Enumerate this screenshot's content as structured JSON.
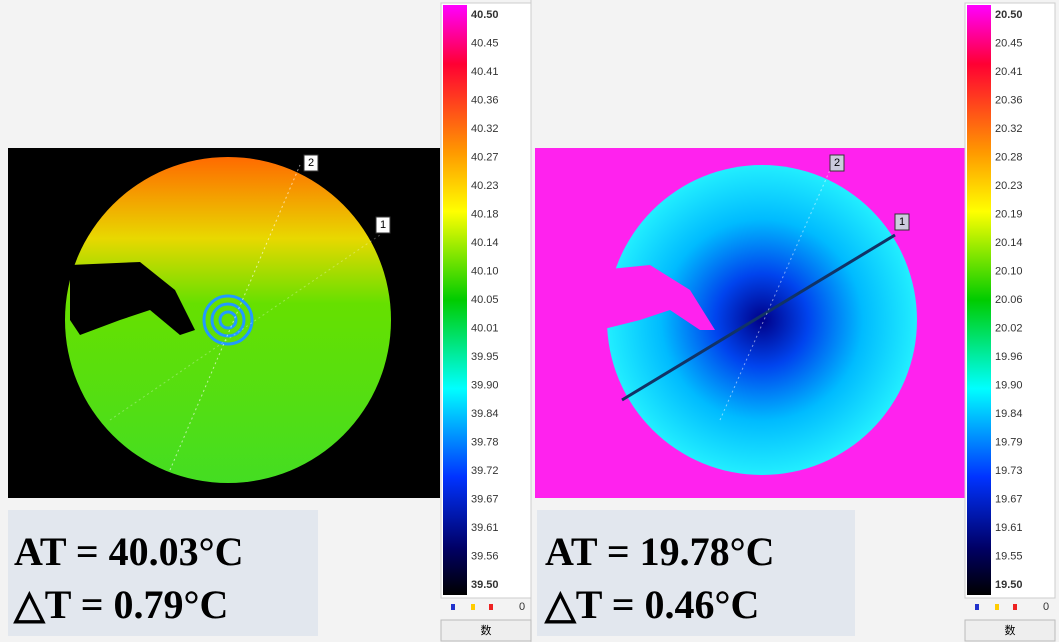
{
  "panels": [
    {
      "colorbar": {
        "labels": [
          "40.50",
          "40.45",
          "40.41",
          "40.36",
          "40.32",
          "40.27",
          "40.23",
          "40.18",
          "40.14",
          "40.10",
          "40.05",
          "40.01",
          "39.95",
          "39.90",
          "39.84",
          "39.78",
          "39.72",
          "39.67",
          "39.61",
          "39.56",
          "39.50"
        ]
      },
      "markers": [
        "2",
        "1"
      ],
      "readout": {
        "at": "AT = 40.03°C",
        "dt": "△T = 0.79°C"
      },
      "legend": {
        "value": "0",
        "button": "数"
      }
    },
    {
      "colorbar": {
        "labels": [
          "20.50",
          "20.45",
          "20.41",
          "20.36",
          "20.32",
          "20.28",
          "20.23",
          "20.19",
          "20.14",
          "20.10",
          "20.06",
          "20.02",
          "19.96",
          "19.90",
          "19.84",
          "19.79",
          "19.73",
          "19.67",
          "19.61",
          "19.55",
          "19.50"
        ]
      },
      "markers": [
        "2",
        "1"
      ],
      "readout": {
        "at": "AT = 19.78°C",
        "dt": "△T = 0.46°C"
      },
      "legend": {
        "value": "0",
        "button": "数"
      }
    }
  ]
}
